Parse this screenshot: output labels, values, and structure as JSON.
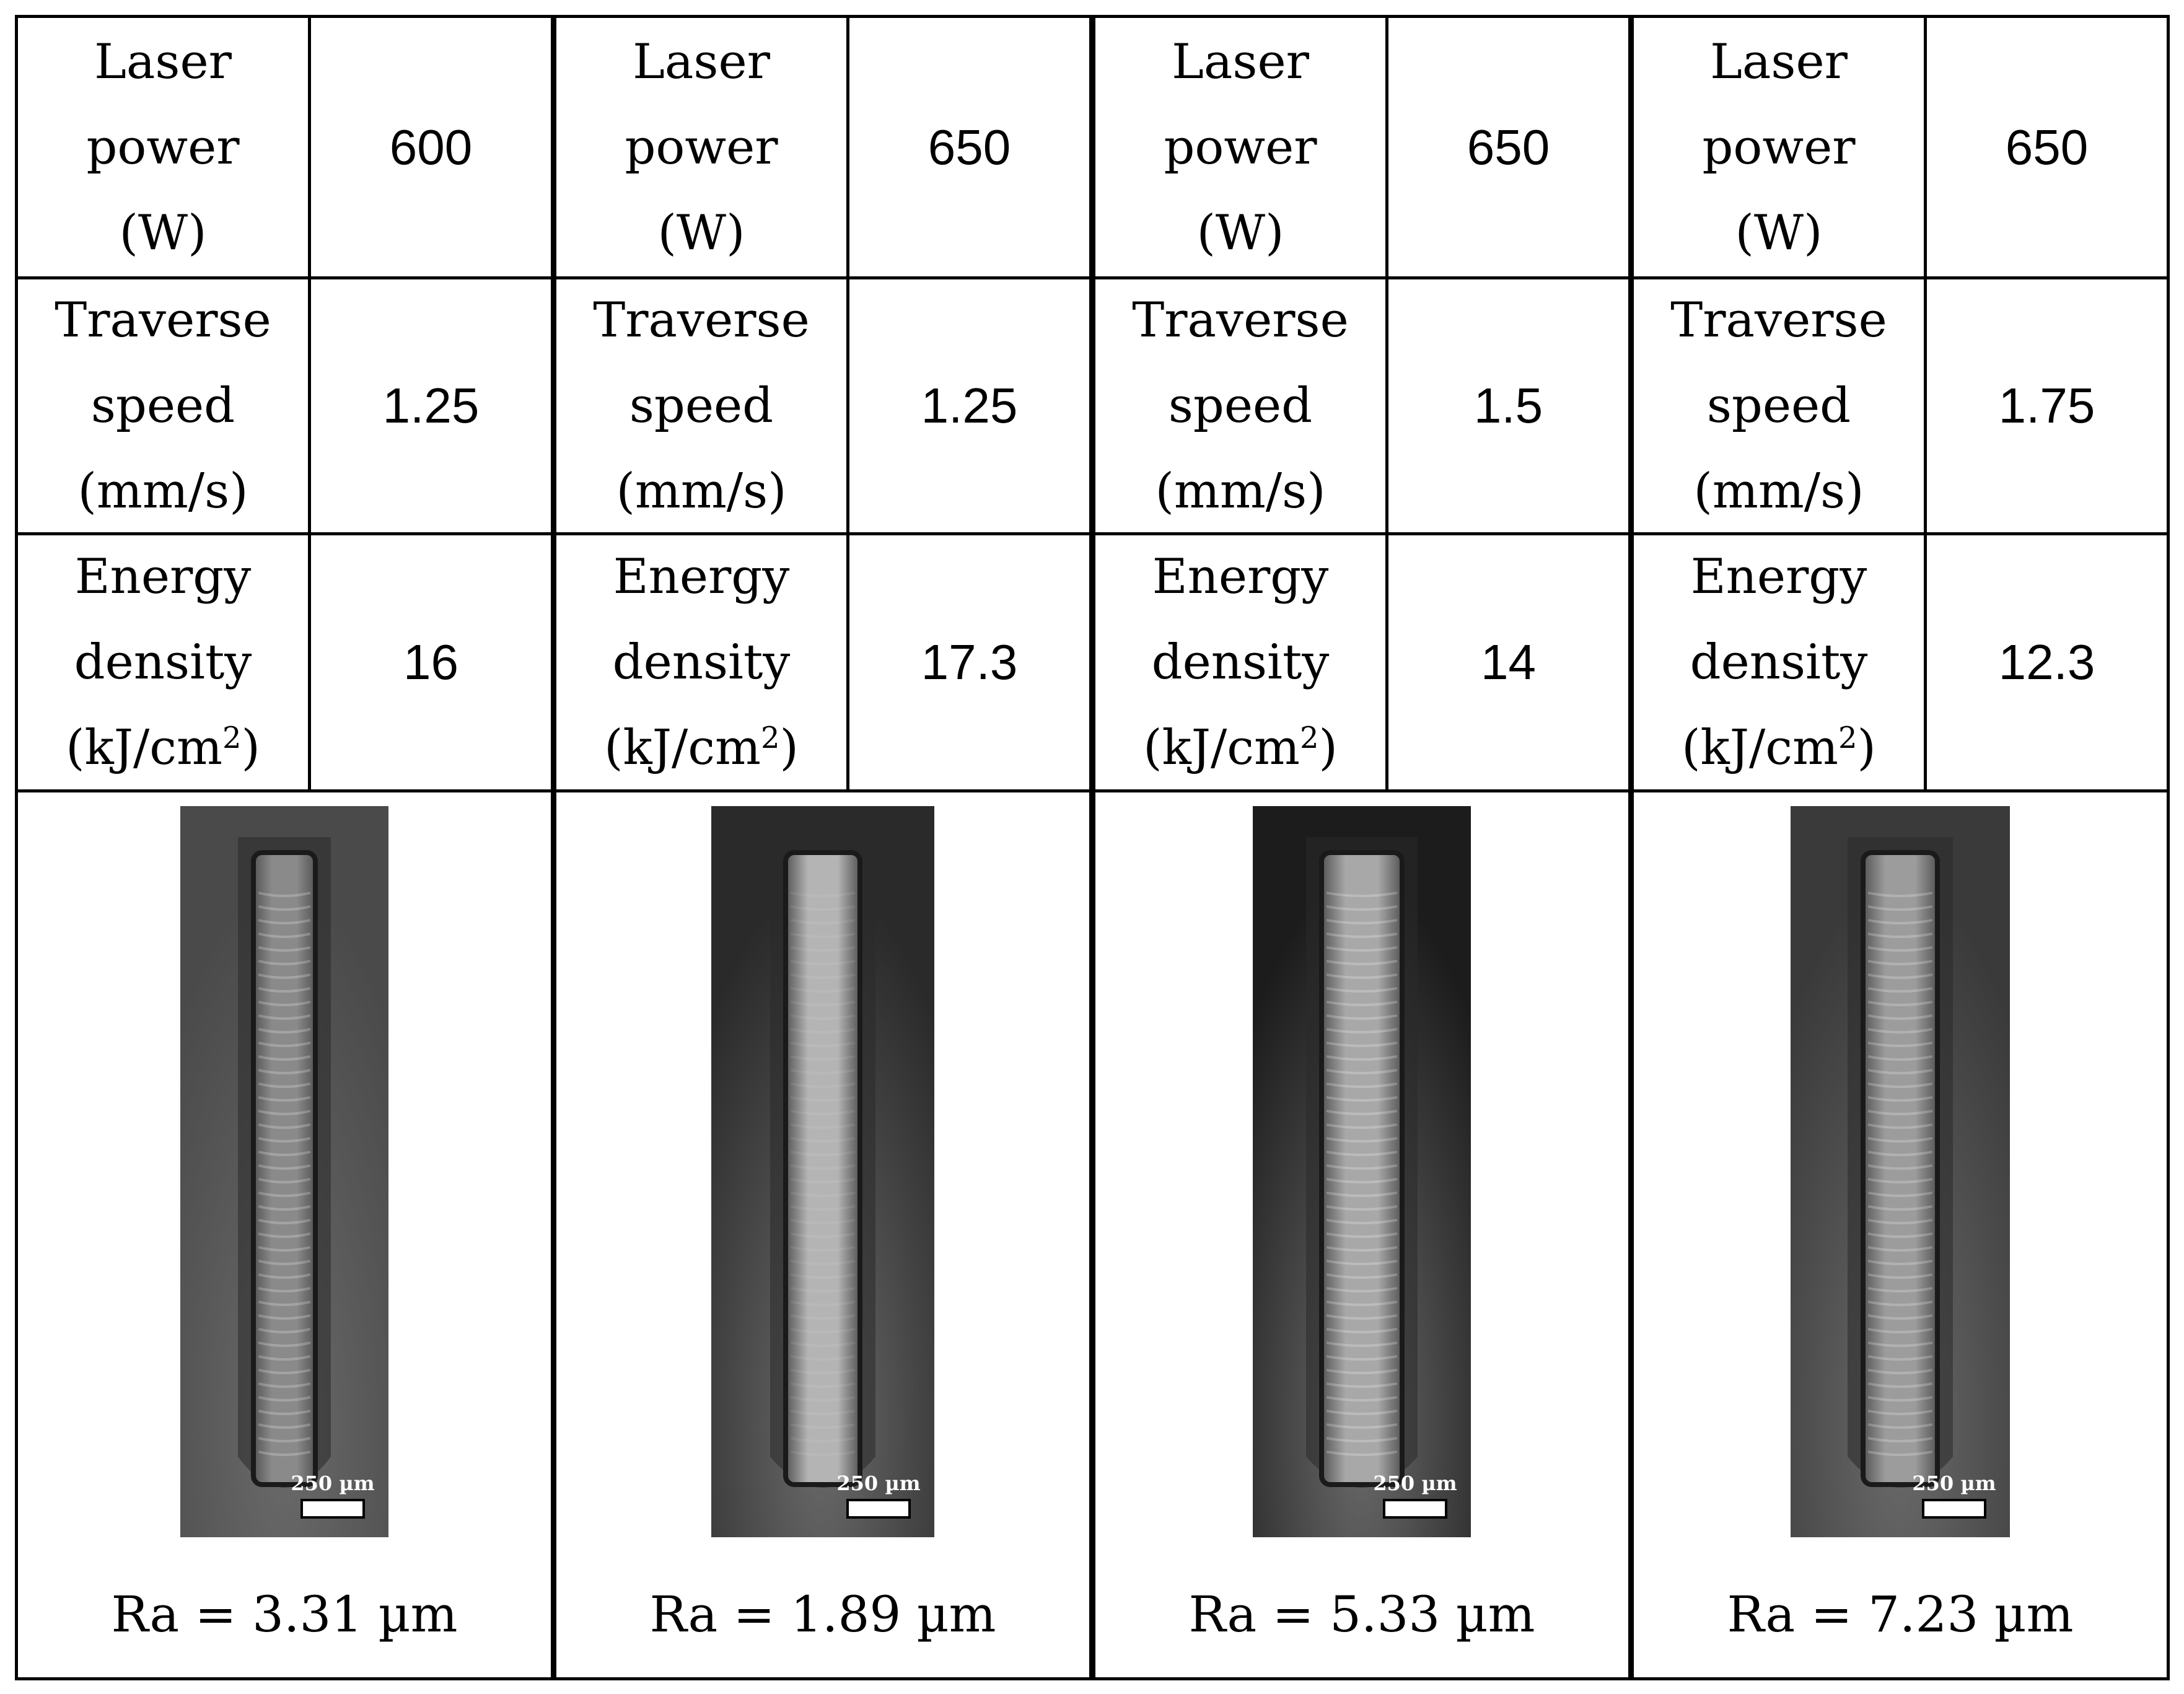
{
  "labels": {
    "laser_power": [
      "Laser",
      "power",
      "(W)"
    ],
    "traverse_speed": [
      "Traverse",
      "speed",
      "(mm/s)"
    ],
    "energy_density": [
      "Energy",
      "density",
      "(kJ/cm",
      "2",
      ")"
    ]
  },
  "columns": [
    {
      "laser_power": "600",
      "traverse_speed": "1.25",
      "energy_density": "16",
      "scale_bar": "250 µm",
      "roughness": "Ra = 3.31 µm"
    },
    {
      "laser_power": "650",
      "traverse_speed": "1.25",
      "energy_density": "17.3",
      "scale_bar": "250 µm",
      "roughness": "Ra = 1.89 µm"
    },
    {
      "laser_power": "650",
      "traverse_speed": "1.5",
      "energy_density": "14",
      "scale_bar": "250 µm",
      "roughness": "Ra = 5.33 µm"
    },
    {
      "laser_power": "650",
      "traverse_speed": "1.75",
      "energy_density": "12.3",
      "scale_bar": "250 µm",
      "roughness": "Ra = 7.23 µm"
    }
  ],
  "micrograph_tones": [
    "#4a4a4a",
    "#2a2a2a",
    "#1c1c1c",
    "#3a3a3a"
  ],
  "track_tones": [
    "#8a8a8a",
    "#b4b4b4",
    "#a8a8a8",
    "#9c9c9c"
  ]
}
